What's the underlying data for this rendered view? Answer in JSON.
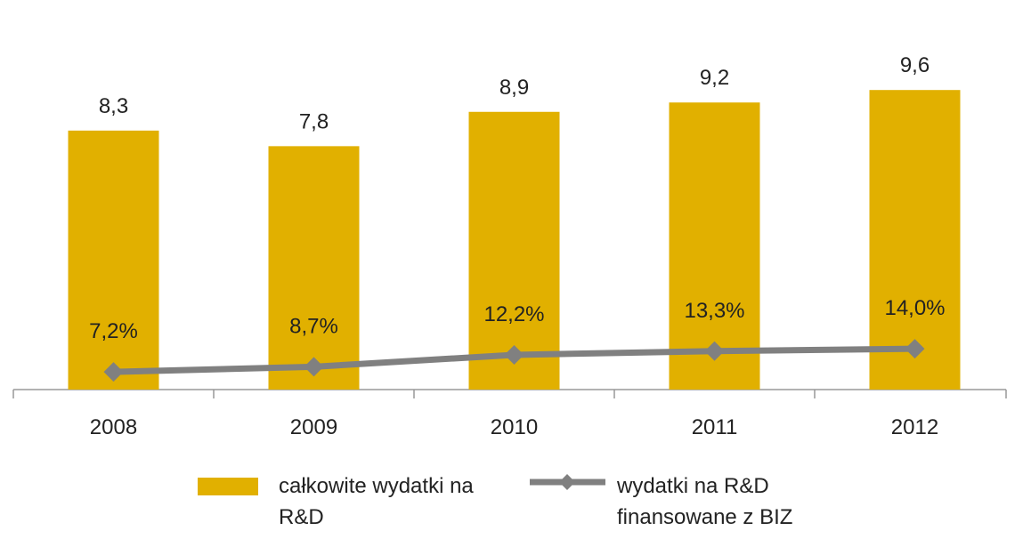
{
  "chart_data": {
    "type": "bar-line",
    "categories": [
      "2008",
      "2009",
      "2010",
      "2011",
      "2012"
    ],
    "series": [
      {
        "name": "całkowite wydatki na R&D",
        "type": "bar",
        "color": "#e1b000",
        "values": [
          8.3,
          7.8,
          8.9,
          9.2,
          9.6
        ],
        "value_labels": [
          "8,3",
          "7,8",
          "8,9",
          "9,2",
          "9,6"
        ]
      },
      {
        "name": "wydatki na R&D finansowane z BIZ",
        "type": "line",
        "axis": "y2",
        "color": "#808080",
        "values": [
          7.2,
          8.7,
          12.2,
          13.3,
          14.0
        ],
        "value_labels": [
          "7,2%",
          "8,7%",
          "12,2%",
          "13,3%",
          "14,0%"
        ]
      }
    ],
    "ylim": [
      0,
      12
    ],
    "y2lim": [
      2,
      112
    ]
  }
}
